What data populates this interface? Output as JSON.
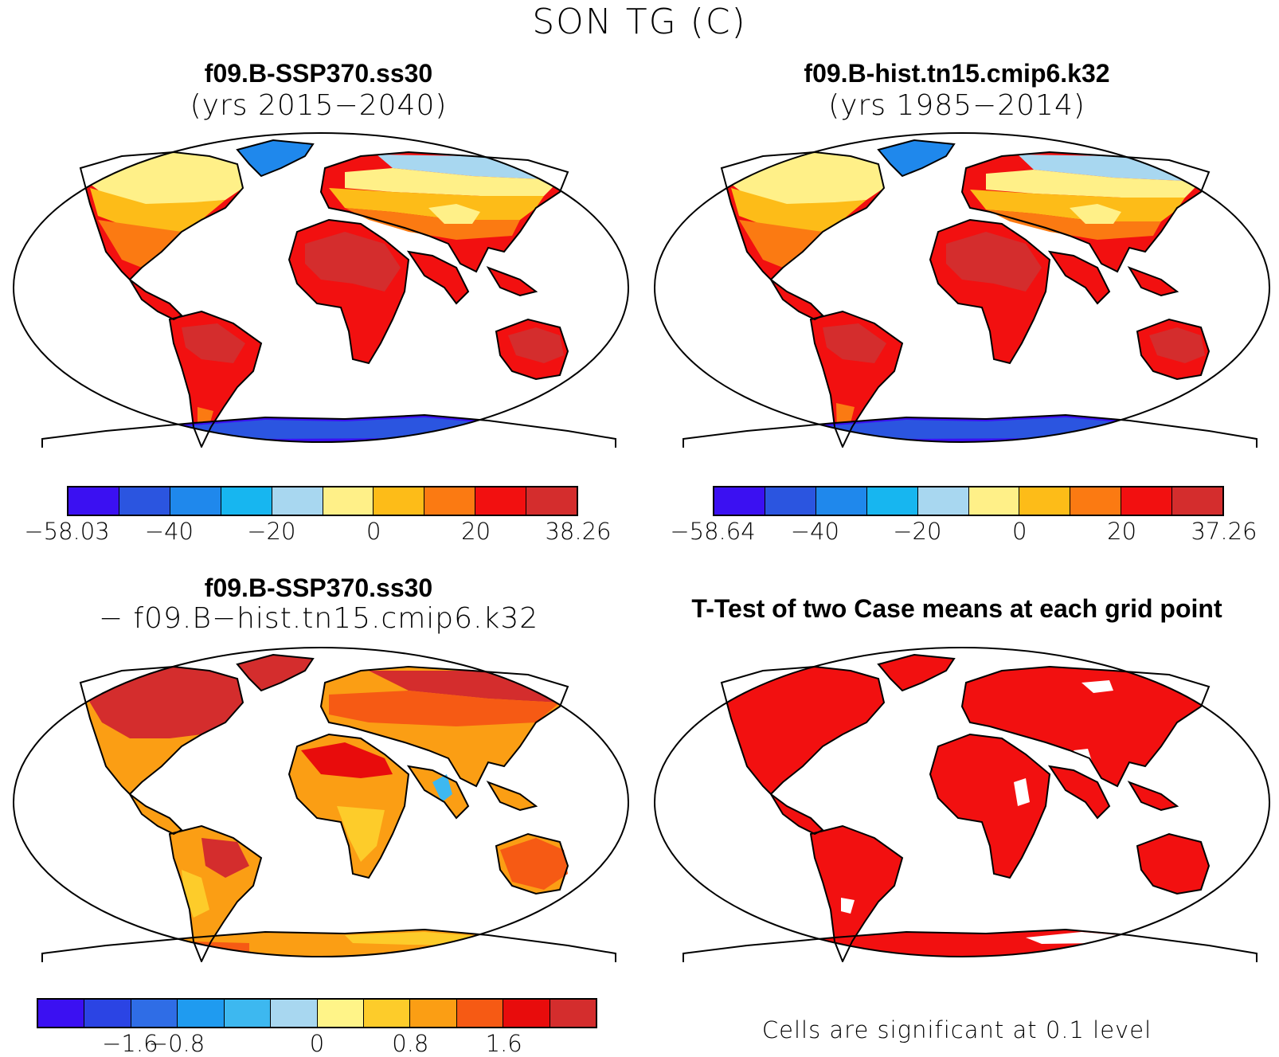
{
  "figure": {
    "title": "SON TG (C)",
    "footnote": "Cells are significant at 0.1 level"
  },
  "panels": [
    {
      "title": "f09.B-SSP370.ss30",
      "subtitle": "(yrs 2015−2040)",
      "fill_scheme": "absolute-temp",
      "colorbar": {
        "colors": [
          "#3b10f2",
          "#2b55e0",
          "#1f88ec",
          "#17b6f0",
          "#a8d7f0",
          "#fff088",
          "#fdbc18",
          "#fb7a12",
          "#f21010",
          "#d42d2d"
        ],
        "labels": [
          "−58.03",
          "−40",
          "−20",
          "0",
          "20",
          "38.26"
        ]
      }
    },
    {
      "title": "f09.B-hist.tn15.cmip6.k32",
      "subtitle": "(yrs 1985−2014)",
      "fill_scheme": "absolute-temp",
      "colorbar": {
        "colors": [
          "#3b10f2",
          "#2b55e0",
          "#1f88ec",
          "#17b6f0",
          "#a8d7f0",
          "#fff088",
          "#fdbc18",
          "#fb7a12",
          "#f21010",
          "#d42d2d"
        ],
        "labels": [
          "−58.64",
          "−40",
          "−20",
          "0",
          "20",
          "37.26"
        ]
      }
    },
    {
      "title": "f09.B-SSP370.ss30",
      "subtitle": "− f09.B−hist.tn15.cmip6.k32",
      "fill_scheme": "difference",
      "colorbar": {
        "colors": [
          "#3b10f2",
          "#2b44e4",
          "#2f6de6",
          "#1f9bf0",
          "#3db8f0",
          "#a8d7f0",
          "#fff488",
          "#fdcc2a",
          "#fb9e14",
          "#f65a14",
          "#e80c0c",
          "#d42d2d"
        ],
        "labels": [
          "−1.6",
          "−0.8",
          "0",
          "0.8",
          "1.6"
        ]
      }
    },
    {
      "title": "T-Test of two Case means at each grid point",
      "subtitle": "",
      "fill_scheme": "significance"
    }
  ]
}
